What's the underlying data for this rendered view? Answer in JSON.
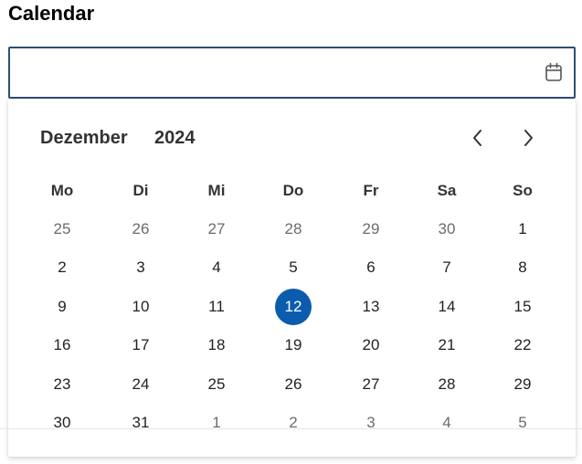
{
  "title": "Calendar",
  "input": {
    "value": "",
    "placeholder": ""
  },
  "icons": {
    "calendar": "calendar-icon",
    "prev": "chevron-left-icon",
    "next": "chevron-right-icon"
  },
  "colors": {
    "selected_bg": "#0b5cad",
    "input_border": "#2f4f6f"
  },
  "picker": {
    "month": "Dezember",
    "year": "2024",
    "weekdays": [
      "Mo",
      "Di",
      "Mi",
      "Do",
      "Fr",
      "Sa",
      "So"
    ],
    "weeks": [
      [
        {
          "d": "25",
          "other": true
        },
        {
          "d": "26",
          "other": true
        },
        {
          "d": "27",
          "other": true
        },
        {
          "d": "28",
          "other": true
        },
        {
          "d": "29",
          "other": true
        },
        {
          "d": "30",
          "other": true
        },
        {
          "d": "1",
          "other": false
        }
      ],
      [
        {
          "d": "2",
          "other": false
        },
        {
          "d": "3",
          "other": false
        },
        {
          "d": "4",
          "other": false
        },
        {
          "d": "5",
          "other": false
        },
        {
          "d": "6",
          "other": false
        },
        {
          "d": "7",
          "other": false
        },
        {
          "d": "8",
          "other": false
        }
      ],
      [
        {
          "d": "9",
          "other": false
        },
        {
          "d": "10",
          "other": false
        },
        {
          "d": "11",
          "other": false
        },
        {
          "d": "12",
          "other": false,
          "selected": true
        },
        {
          "d": "13",
          "other": false
        },
        {
          "d": "14",
          "other": false
        },
        {
          "d": "15",
          "other": false
        }
      ],
      [
        {
          "d": "16",
          "other": false
        },
        {
          "d": "17",
          "other": false
        },
        {
          "d": "18",
          "other": false
        },
        {
          "d": "19",
          "other": false
        },
        {
          "d": "20",
          "other": false
        },
        {
          "d": "21",
          "other": false
        },
        {
          "d": "22",
          "other": false
        }
      ],
      [
        {
          "d": "23",
          "other": false
        },
        {
          "d": "24",
          "other": false
        },
        {
          "d": "25",
          "other": false
        },
        {
          "d": "26",
          "other": false
        },
        {
          "d": "27",
          "other": false
        },
        {
          "d": "28",
          "other": false
        },
        {
          "d": "29",
          "other": false
        }
      ],
      [
        {
          "d": "30",
          "other": false
        },
        {
          "d": "31",
          "other": false
        },
        {
          "d": "1",
          "other": true
        },
        {
          "d": "2",
          "other": true
        },
        {
          "d": "3",
          "other": true
        },
        {
          "d": "4",
          "other": true
        },
        {
          "d": "5",
          "other": true
        }
      ]
    ]
  }
}
